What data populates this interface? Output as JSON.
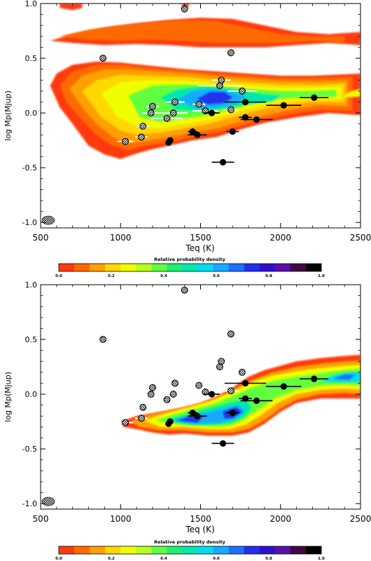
{
  "chart_data": [
    {
      "type": "heatmap",
      "panel": "top",
      "xlabel": "Teq (K)",
      "ylabel": "log Mp(Mjup)",
      "xlim": [
        500,
        2500
      ],
      "ylim": [
        -1.05,
        1.0
      ],
      "xticks": [
        500,
        1000,
        1500,
        2000,
        2500
      ],
      "yticks": [
        -1.0,
        -0.5,
        0.0,
        0.5,
        1.0
      ],
      "ytick_labels": [
        "-1.0",
        "-0.5",
        "0.0",
        "0.5",
        "1.0"
      ],
      "colorbar": {
        "title": "Relative probability density",
        "range": [
          0.0,
          1.0
        ],
        "tick_labels": [
          "0.0",
          "0.2",
          "0.4",
          "0.6",
          "0.8",
          "1.0"
        ],
        "colors": [
          "#ff3a10",
          "#ff6a00",
          "#ffa000",
          "#ffd800",
          "#f0ff00",
          "#b8ff20",
          "#60ff40",
          "#20ee70",
          "#00e8b0",
          "#00ddee",
          "#18aaff",
          "#2070ff",
          "#2030ee",
          "#3010cc",
          "#5a10a8",
          "#400840",
          "#000000"
        ]
      },
      "density_regions": [
        {
          "band": "upper-stripe",
          "x": [
            560,
            2500
          ],
          "y": [
            0.62,
            0.87
          ]
        },
        {
          "band": "main",
          "x": [
            560,
            2500
          ],
          "y": [
            -0.42,
            0.46
          ]
        },
        {
          "band": "top-edge",
          "x": [
            620,
            760
          ],
          "y": [
            0.95,
            1.0
          ]
        }
      ],
      "planets_filled": [
        {
          "x": 1640,
          "y": -0.45,
          "xerr": 70,
          "yerr": 0.0
        },
        {
          "x": 1300,
          "y": -0.27,
          "xerr": 20,
          "yerr": 0.0
        },
        {
          "x": 1310,
          "y": -0.25,
          "xerr": 20,
          "yerr": 0.0
        },
        {
          "x": 1450,
          "y": -0.17,
          "xerr": 30,
          "yerr": 0.0
        },
        {
          "x": 1480,
          "y": -0.2,
          "xerr": 60,
          "yerr": 0.0
        },
        {
          "x": 1700,
          "y": -0.17,
          "xerr": 40,
          "yerr": 0.0
        },
        {
          "x": 1570,
          "y": 0.0,
          "xerr": 50,
          "yerr": 0.0
        },
        {
          "x": 1780,
          "y": -0.04,
          "xerr": 40,
          "yerr": 0.0
        },
        {
          "x": 1850,
          "y": -0.06,
          "xerr": 100,
          "yerr": 0.0
        },
        {
          "x": 1780,
          "y": 0.1,
          "xerr": 130,
          "yerr": 0.0
        },
        {
          "x": 2020,
          "y": 0.07,
          "xerr": 110,
          "yerr": 0.0
        },
        {
          "x": 2210,
          "y": 0.14,
          "xerr": 90,
          "yerr": 0.0
        }
      ],
      "planets_hatched": [
        {
          "x": 1400,
          "y": 0.95,
          "xerr": 0
        },
        {
          "x": 890,
          "y": 0.5,
          "xerr": 0
        },
        {
          "x": 1690,
          "y": 0.55,
          "xerr": 60
        },
        {
          "x": 1030,
          "y": -0.26,
          "xerr": 50
        },
        {
          "x": 1130,
          "y": -0.22,
          "xerr": 40
        },
        {
          "x": 1140,
          "y": -0.12,
          "xerr": 40
        },
        {
          "x": 1190,
          "y": 0.0,
          "xerr": 60
        },
        {
          "x": 1200,
          "y": 0.06,
          "xerr": 40
        },
        {
          "x": 1290,
          "y": -0.05,
          "xerr": 100
        },
        {
          "x": 1330,
          "y": 0.0,
          "xerr": 90
        },
        {
          "x": 1340,
          "y": 0.1,
          "xerr": 60
        },
        {
          "x": 1490,
          "y": 0.08,
          "xerr": 40
        },
        {
          "x": 1530,
          "y": 0.02,
          "xerr": 80
        },
        {
          "x": 1620,
          "y": 0.25,
          "xerr": 140
        },
        {
          "x": 1630,
          "y": 0.3,
          "xerr": 60
        },
        {
          "x": 1690,
          "y": 0.03,
          "xerr": 50
        },
        {
          "x": 1760,
          "y": 0.2,
          "xerr": 90
        }
      ],
      "beam_ellipse": {
        "x": 548,
        "y": -0.98
      }
    },
    {
      "type": "heatmap",
      "panel": "bottom",
      "xlabel": "Teq (K)",
      "ylabel": "log Mp(Mjup)",
      "xlim": [
        500,
        2500
      ],
      "ylim": [
        -1.05,
        1.0
      ],
      "xticks": [
        500,
        1000,
        1500,
        2000,
        2500
      ],
      "yticks": [
        -1.0,
        -0.5,
        0.0,
        0.5,
        1.0
      ],
      "ytick_labels": [
        "-1.0",
        "-0.5",
        "0.0",
        "0.5",
        "1.0"
      ],
      "colorbar": {
        "title": "Relative probability density",
        "range": [
          0.0,
          1.0
        ],
        "tick_labels": [
          "0.0",
          "0.2",
          "0.4",
          "0.6",
          "0.8",
          "1.0"
        ],
        "colors": [
          "#ff3a10",
          "#ff6a00",
          "#ffa000",
          "#ffd800",
          "#f0ff00",
          "#b8ff20",
          "#60ff40",
          "#20ee70",
          "#00e8b0",
          "#00ddee",
          "#18aaff",
          "#2070ff",
          "#2030ee",
          "#3010cc",
          "#5a10a8",
          "#400840",
          "#000000"
        ]
      },
      "density_regions": [
        {
          "band": "main",
          "x": [
            1000,
            2500
          ],
          "y": [
            -0.4,
            0.36
          ]
        }
      ],
      "planets_filled": [
        {
          "x": 1640,
          "y": -0.45,
          "xerr": 70,
          "yerr": 0.0
        },
        {
          "x": 1300,
          "y": -0.27,
          "xerr": 20,
          "yerr": 0.0
        },
        {
          "x": 1310,
          "y": -0.25,
          "xerr": 20,
          "yerr": 0.0
        },
        {
          "x": 1450,
          "y": -0.17,
          "xerr": 30,
          "yerr": 0.0
        },
        {
          "x": 1480,
          "y": -0.2,
          "xerr": 60,
          "yerr": 0.0
        },
        {
          "x": 1700,
          "y": -0.17,
          "xerr": 40,
          "yerr": 0.0
        },
        {
          "x": 1570,
          "y": 0.0,
          "xerr": 50,
          "yerr": 0.0
        },
        {
          "x": 1780,
          "y": -0.04,
          "xerr": 40,
          "yerr": 0.0
        },
        {
          "x": 1850,
          "y": -0.06,
          "xerr": 100,
          "yerr": 0.0
        },
        {
          "x": 1780,
          "y": 0.1,
          "xerr": 130,
          "yerr": 0.0
        },
        {
          "x": 2020,
          "y": 0.07,
          "xerr": 110,
          "yerr": 0.0
        },
        {
          "x": 2210,
          "y": 0.14,
          "xerr": 90,
          "yerr": 0.0
        }
      ],
      "planets_hatched": [
        {
          "x": 1400,
          "y": 0.95,
          "xerr": 0
        },
        {
          "x": 890,
          "y": 0.5,
          "xerr": 0
        },
        {
          "x": 1690,
          "y": 0.55,
          "xerr": 60
        },
        {
          "x": 1030,
          "y": -0.26,
          "xerr": 50
        },
        {
          "x": 1130,
          "y": -0.22,
          "xerr": 40
        },
        {
          "x": 1140,
          "y": -0.12,
          "xerr": 40
        },
        {
          "x": 1190,
          "y": 0.0,
          "xerr": 60
        },
        {
          "x": 1200,
          "y": 0.06,
          "xerr": 40
        },
        {
          "x": 1290,
          "y": -0.05,
          "xerr": 100
        },
        {
          "x": 1330,
          "y": 0.0,
          "xerr": 90
        },
        {
          "x": 1340,
          "y": 0.1,
          "xerr": 60
        },
        {
          "x": 1490,
          "y": 0.08,
          "xerr": 40
        },
        {
          "x": 1530,
          "y": 0.02,
          "xerr": 80
        },
        {
          "x": 1620,
          "y": 0.25,
          "xerr": 140
        },
        {
          "x": 1630,
          "y": 0.3,
          "xerr": 60
        },
        {
          "x": 1690,
          "y": 0.03,
          "xerr": 50
        },
        {
          "x": 1760,
          "y": 0.2,
          "xerr": 90
        }
      ],
      "beam_ellipse": {
        "x": 548,
        "y": -0.98
      }
    }
  ]
}
